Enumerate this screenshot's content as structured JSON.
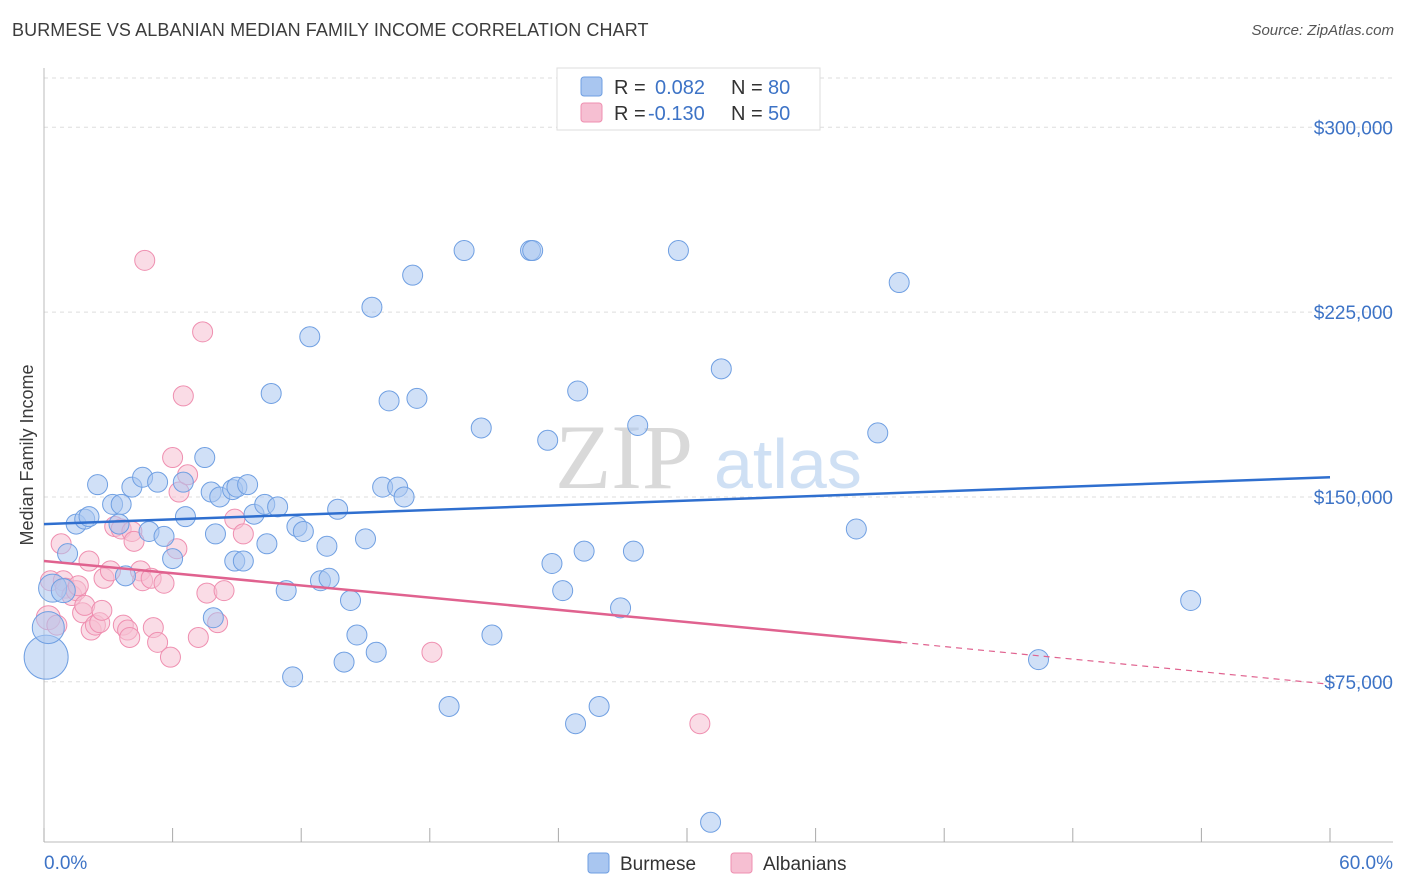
{
  "title": "BURMESE VS ALBANIAN MEDIAN FAMILY INCOME CORRELATION CHART",
  "source": "Source: ZipAtlas.com",
  "watermark": {
    "zip": "ZIP",
    "atlas": "atlas"
  },
  "colors": {
    "burmese": "#6f9fe2",
    "burmese_fill": "#a9c6f0",
    "burmese_line": "#2f6fcf",
    "albanians": "#ef8fb0",
    "albanians_fill": "#f6bfd2",
    "albanians_line": "#e0628f",
    "tick_text": "#3d73c6",
    "grid": "#dddddd"
  },
  "stats_legend": [
    {
      "r_label": "R =",
      "r_value": "0.082",
      "n_label": "N =",
      "n_value": "80"
    },
    {
      "r_label": "R =",
      "r_value": "-0.130",
      "n_label": "N =",
      "n_value": "50"
    }
  ],
  "chart_data": {
    "type": "scatter",
    "title": "BURMESE VS ALBANIAN MEDIAN FAMILY INCOME CORRELATION CHART",
    "xlabel": "",
    "ylabel": "Median Family Income",
    "xlim": [
      0,
      60
    ],
    "ylim": [
      10000,
      320000
    ],
    "x_tick_labels": [
      "0.0%",
      "60.0%"
    ],
    "y_ticks": [
      75000,
      150000,
      225000,
      300000
    ],
    "y_tick_labels": [
      "$75,000",
      "$150,000",
      "$225,000",
      "$300,000"
    ],
    "grid": true,
    "legend_position": "bottom-center",
    "series": [
      {
        "name": "Burmese",
        "r": 0.082,
        "n": 80,
        "trend": {
          "x0": 0,
          "y0": 139000,
          "x1": 60,
          "y1": 158000
        },
        "points": [
          [
            0.1,
            85000,
            22
          ],
          [
            0.2,
            97000,
            16
          ],
          [
            0.4,
            113000,
            14
          ],
          [
            0.9,
            112000,
            12
          ],
          [
            1.1,
            127000,
            10
          ],
          [
            1.5,
            139000,
            10
          ],
          [
            1.9,
            141000,
            10
          ],
          [
            2.1,
            142000,
            10
          ],
          [
            2.5,
            155000,
            10
          ],
          [
            3.2,
            147000,
            10
          ],
          [
            3.6,
            147000,
            10
          ],
          [
            3.5,
            139000,
            10
          ],
          [
            3.8,
            118000,
            10
          ],
          [
            4.1,
            154000,
            10
          ],
          [
            4.6,
            158000,
            10
          ],
          [
            4.9,
            136000,
            10
          ],
          [
            5.6,
            134000,
            10
          ],
          [
            5.3,
            156000,
            10
          ],
          [
            6.0,
            125000,
            10
          ],
          [
            6.5,
            156000,
            10
          ],
          [
            6.6,
            142000,
            10
          ],
          [
            7.5,
            166000,
            10
          ],
          [
            7.8,
            152000,
            10
          ],
          [
            7.9,
            101000,
            10
          ],
          [
            8.0,
            135000,
            10
          ],
          [
            8.2,
            150000,
            10
          ],
          [
            8.8,
            153000,
            10
          ],
          [
            8.9,
            124000,
            10
          ],
          [
            9.0,
            154000,
            10
          ],
          [
            9.3,
            124000,
            10
          ],
          [
            9.5,
            155000,
            10
          ],
          [
            9.8,
            143000,
            10
          ],
          [
            10.3,
            147000,
            10
          ],
          [
            10.4,
            131000,
            10
          ],
          [
            10.6,
            192000,
            10
          ],
          [
            10.9,
            146000,
            10
          ],
          [
            11.3,
            112000,
            10
          ],
          [
            11.8,
            138000,
            10
          ],
          [
            11.6,
            77000,
            10
          ],
          [
            12.1,
            136000,
            10
          ],
          [
            12.4,
            215000,
            10
          ],
          [
            12.9,
            116000,
            10
          ],
          [
            13.3,
            117000,
            10
          ],
          [
            13.2,
            130000,
            10
          ],
          [
            13.7,
            145000,
            10
          ],
          [
            14.0,
            83000,
            10
          ],
          [
            14.3,
            108000,
            10
          ],
          [
            14.6,
            94000,
            10
          ],
          [
            15.0,
            133000,
            10
          ],
          [
            15.3,
            227000,
            10
          ],
          [
            15.5,
            87000,
            10
          ],
          [
            15.8,
            154000,
            10
          ],
          [
            16.1,
            189000,
            10
          ],
          [
            16.5,
            154000,
            10
          ],
          [
            16.8,
            150000,
            10
          ],
          [
            17.2,
            240000,
            10
          ],
          [
            17.4,
            190000,
            10
          ],
          [
            18.9,
            65000,
            10
          ],
          [
            19.6,
            250000,
            10
          ],
          [
            20.4,
            178000,
            10
          ],
          [
            20.9,
            94000,
            10
          ],
          [
            22.7,
            250000,
            10
          ],
          [
            22.8,
            250000,
            10
          ],
          [
            23.5,
            173000,
            10
          ],
          [
            23.7,
            123000,
            10
          ],
          [
            24.2,
            112000,
            10
          ],
          [
            24.8,
            58000,
            10
          ],
          [
            24.9,
            193000,
            10
          ],
          [
            25.2,
            128000,
            10
          ],
          [
            25.9,
            65000,
            10
          ],
          [
            26.9,
            105000,
            10
          ],
          [
            27.5,
            128000,
            10
          ],
          [
            27.7,
            179000,
            10
          ],
          [
            29.6,
            250000,
            10
          ],
          [
            31.1,
            18000,
            10
          ],
          [
            31.6,
            202000,
            10
          ],
          [
            37.9,
            137000,
            10
          ],
          [
            38.9,
            176000,
            10
          ],
          [
            39.9,
            237000,
            10
          ],
          [
            46.4,
            84000,
            10
          ],
          [
            53.5,
            108000,
            10
          ]
        ]
      },
      {
        "name": "Albanians",
        "r": -0.13,
        "n": 50,
        "trend": {
          "x0": 0,
          "y0": 124000,
          "x1": 40,
          "y1": 91000
        },
        "trend_dashed": {
          "x0": 40,
          "y0": 91000,
          "x1": 60,
          "y1": 74000
        },
        "points": [
          [
            0.2,
            101000,
            12
          ],
          [
            0.3,
            116000,
            10
          ],
          [
            0.6,
            98000,
            10
          ],
          [
            0.9,
            116000,
            10
          ],
          [
            0.8,
            131000,
            10
          ],
          [
            1.0,
            113000,
            10
          ],
          [
            1.3,
            110000,
            10
          ],
          [
            1.5,
            112000,
            10
          ],
          [
            1.6,
            114000,
            10
          ],
          [
            1.8,
            103000,
            10
          ],
          [
            1.9,
            106000,
            10
          ],
          [
            2.1,
            124000,
            10
          ],
          [
            2.2,
            96000,
            10
          ],
          [
            2.4,
            98000,
            10
          ],
          [
            2.6,
            99000,
            10
          ],
          [
            2.7,
            104000,
            10
          ],
          [
            2.8,
            117000,
            10
          ],
          [
            3.1,
            120000,
            10
          ],
          [
            3.3,
            138000,
            10
          ],
          [
            3.6,
            137000,
            10
          ],
          [
            3.7,
            98000,
            10
          ],
          [
            3.9,
            96000,
            10
          ],
          [
            4.0,
            93000,
            10
          ],
          [
            4.1,
            136000,
            10
          ],
          [
            4.2,
            132000,
            10
          ],
          [
            4.5,
            120000,
            10
          ],
          [
            4.6,
            116000,
            10
          ],
          [
            4.7,
            246000,
            10
          ],
          [
            5.0,
            117000,
            10
          ],
          [
            5.1,
            97000,
            10
          ],
          [
            5.3,
            91000,
            10
          ],
          [
            5.6,
            115000,
            10
          ],
          [
            5.9,
            85000,
            10
          ],
          [
            6.0,
            166000,
            10
          ],
          [
            6.2,
            129000,
            10
          ],
          [
            6.3,
            152000,
            10
          ],
          [
            6.5,
            191000,
            10
          ],
          [
            6.7,
            159000,
            10
          ],
          [
            7.2,
            93000,
            10
          ],
          [
            7.4,
            217000,
            10
          ],
          [
            7.6,
            111000,
            10
          ],
          [
            8.1,
            99000,
            10
          ],
          [
            8.4,
            112000,
            10
          ],
          [
            8.9,
            141000,
            10
          ],
          [
            9.3,
            135000,
            10
          ],
          [
            18.1,
            87000,
            10
          ],
          [
            30.6,
            58000,
            10
          ]
        ]
      }
    ]
  },
  "legend": [
    {
      "label": "Burmese"
    },
    {
      "label": "Albanians"
    }
  ]
}
